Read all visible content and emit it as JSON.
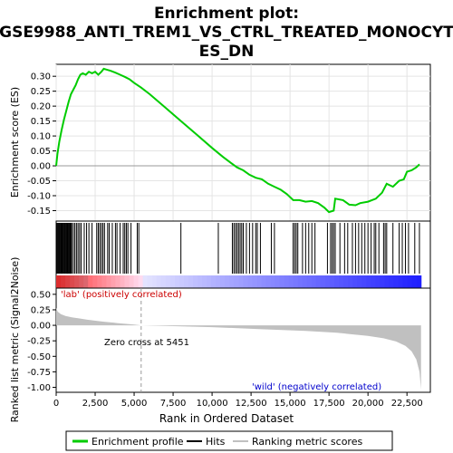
{
  "chart_data": {
    "type": "line",
    "title_line1": "Enrichment plot:",
    "title_line2": "GSE9988_ANTI_TREM1_VS_CTRL_TREATED_MONOCYT",
    "title_line3": "ES_DN",
    "es_panel": {
      "ylabel": "Enrichment score (ES)",
      "ylim": [
        -0.185,
        0.34
      ],
      "yticks": [
        -0.15,
        -0.1,
        -0.05,
        0.0,
        0.05,
        0.1,
        0.15,
        0.2,
        0.25,
        0.3
      ],
      "ytick_labels": [
        "-0.15",
        "-0.10",
        "-0.05",
        "0.00",
        "0.05",
        "0.10",
        "0.15",
        "0.20",
        "0.25",
        "0.30"
      ],
      "grid": true,
      "line_color": "#00cc00",
      "points": [
        [
          0,
          0.0
        ],
        [
          80,
          0.04
        ],
        [
          200,
          0.08
        ],
        [
          350,
          0.12
        ],
        [
          500,
          0.155
        ],
        [
          650,
          0.185
        ],
        [
          800,
          0.215
        ],
        [
          950,
          0.24
        ],
        [
          1100,
          0.255
        ],
        [
          1250,
          0.27
        ],
        [
          1400,
          0.29
        ],
        [
          1550,
          0.305
        ],
        [
          1700,
          0.31
        ],
        [
          1900,
          0.305
        ],
        [
          2100,
          0.315
        ],
        [
          2300,
          0.31
        ],
        [
          2500,
          0.315
        ],
        [
          2700,
          0.305
        ],
        [
          2900,
          0.315
        ],
        [
          3050,
          0.325
        ],
        [
          3250,
          0.322
        ],
        [
          3500,
          0.318
        ],
        [
          3800,
          0.312
        ],
        [
          4100,
          0.305
        ],
        [
          4400,
          0.298
        ],
        [
          4700,
          0.29
        ],
        [
          5000,
          0.278
        ],
        [
          5451,
          0.262
        ],
        [
          6000,
          0.24
        ],
        [
          7000,
          0.195
        ],
        [
          8000,
          0.15
        ],
        [
          9000,
          0.105
        ],
        [
          10000,
          0.06
        ],
        [
          10700,
          0.03
        ],
        [
          11200,
          0.01
        ],
        [
          11600,
          -0.005
        ],
        [
          12000,
          -0.015
        ],
        [
          12400,
          -0.03
        ],
        [
          12800,
          -0.04
        ],
        [
          13200,
          -0.045
        ],
        [
          13600,
          -0.06
        ],
        [
          14000,
          -0.07
        ],
        [
          14400,
          -0.08
        ],
        [
          14800,
          -0.095
        ],
        [
          15200,
          -0.115
        ],
        [
          15600,
          -0.115
        ],
        [
          16000,
          -0.12
        ],
        [
          16400,
          -0.118
        ],
        [
          16800,
          -0.125
        ],
        [
          17200,
          -0.14
        ],
        [
          17500,
          -0.155
        ],
        [
          17800,
          -0.15
        ],
        [
          17900,
          -0.11
        ],
        [
          18400,
          -0.115
        ],
        [
          18800,
          -0.13
        ],
        [
          19200,
          -0.132
        ],
        [
          19500,
          -0.125
        ],
        [
          20000,
          -0.12
        ],
        [
          20500,
          -0.11
        ],
        [
          20900,
          -0.09
        ],
        [
          21200,
          -0.06
        ],
        [
          21600,
          -0.07
        ],
        [
          22000,
          -0.05
        ],
        [
          22300,
          -0.045
        ],
        [
          22500,
          -0.02
        ],
        [
          22800,
          -0.015
        ],
        [
          23100,
          -0.005
        ],
        [
          23300,
          0.005
        ]
      ]
    },
    "hits_panel": {
      "hit_positions": [
        50,
        100,
        150,
        200,
        250,
        300,
        350,
        400,
        450,
        500,
        550,
        600,
        650,
        700,
        750,
        800,
        850,
        900,
        950,
        1000,
        1100,
        1200,
        1300,
        1400,
        1500,
        1600,
        1800,
        1950,
        2100,
        2300,
        2600,
        2700,
        2800,
        2900,
        3000,
        3100,
        3300,
        3400,
        3600,
        3800,
        3900,
        4100,
        4300,
        4400,
        4500,
        4600,
        4800,
        5200,
        5300,
        8000,
        10400,
        11300,
        11400,
        11500,
        11600,
        11700,
        11800,
        11900,
        12000,
        12200,
        12400,
        12600,
        12800,
        12900,
        13100,
        13800,
        14000,
        15200,
        15300,
        15400,
        15500,
        15800,
        16000,
        16200,
        16400,
        16600,
        17400,
        17600,
        17700,
        17800,
        17900,
        18200,
        18500,
        18700,
        19000,
        19200,
        19400,
        19600,
        19800,
        20000,
        20200,
        20400,
        20500,
        20700,
        21000,
        21100,
        21200,
        21600,
        22000,
        22200,
        22400,
        22600,
        23000,
        23300
      ]
    },
    "metric_panel": {
      "ylabel": "Ranked list metric (Signal2Noise)",
      "ylim": [
        -1.08,
        0.6
      ],
      "yticks": [
        0.5,
        0.25,
        0.0,
        -0.25,
        -0.5,
        -0.75,
        -1.0
      ],
      "ytick_labels": [
        "0.50",
        "0.25",
        "0.00",
        "-0.25",
        "-0.50",
        "-0.75",
        "-1.00"
      ],
      "points": [
        [
          0,
          0.28
        ],
        [
          100,
          0.22
        ],
        [
          300,
          0.18
        ],
        [
          600,
          0.15
        ],
        [
          1000,
          0.13
        ],
        [
          1500,
          0.11
        ],
        [
          2000,
          0.09
        ],
        [
          3000,
          0.06
        ],
        [
          4000,
          0.035
        ],
        [
          5000,
          0.012
        ],
        [
          5451,
          0.0
        ],
        [
          7000,
          -0.01
        ],
        [
          10000,
          -0.03
        ],
        [
          13000,
          -0.06
        ],
        [
          16000,
          -0.09
        ],
        [
          18000,
          -0.12
        ],
        [
          20000,
          -0.17
        ],
        [
          21000,
          -0.21
        ],
        [
          21800,
          -0.26
        ],
        [
          22400,
          -0.33
        ],
        [
          22800,
          -0.42
        ],
        [
          23100,
          -0.55
        ],
        [
          23300,
          -0.75
        ],
        [
          23400,
          -1.03
        ]
      ],
      "fill_color": "#c0c0c0",
      "zero_cross_label": "Zero cross at 5451",
      "zero_cross": 5451,
      "positive_label": "'lab' (positively correlated)",
      "negative_label": "'wild' (negatively correlated)"
    },
    "xlabel": "Rank in Ordered Dataset",
    "xlim": [
      0,
      24000
    ],
    "xticks": [
      0,
      2500,
      5000,
      7500,
      10000,
      12500,
      15000,
      17500,
      20000,
      22500
    ],
    "xtick_labels": [
      "0",
      "2,500",
      "5,000",
      "7,500",
      "10,000",
      "12,500",
      "15,000",
      "17,500",
      "20,000",
      "22,500"
    ],
    "legend": {
      "placement": "bottom",
      "items": [
        {
          "label": "Enrichment profile",
          "color": "#00cc00"
        },
        {
          "label": "Hits",
          "color": "#000000"
        },
        {
          "label": "Ranking metric scores",
          "color": "#c0c0c0"
        }
      ]
    }
  }
}
